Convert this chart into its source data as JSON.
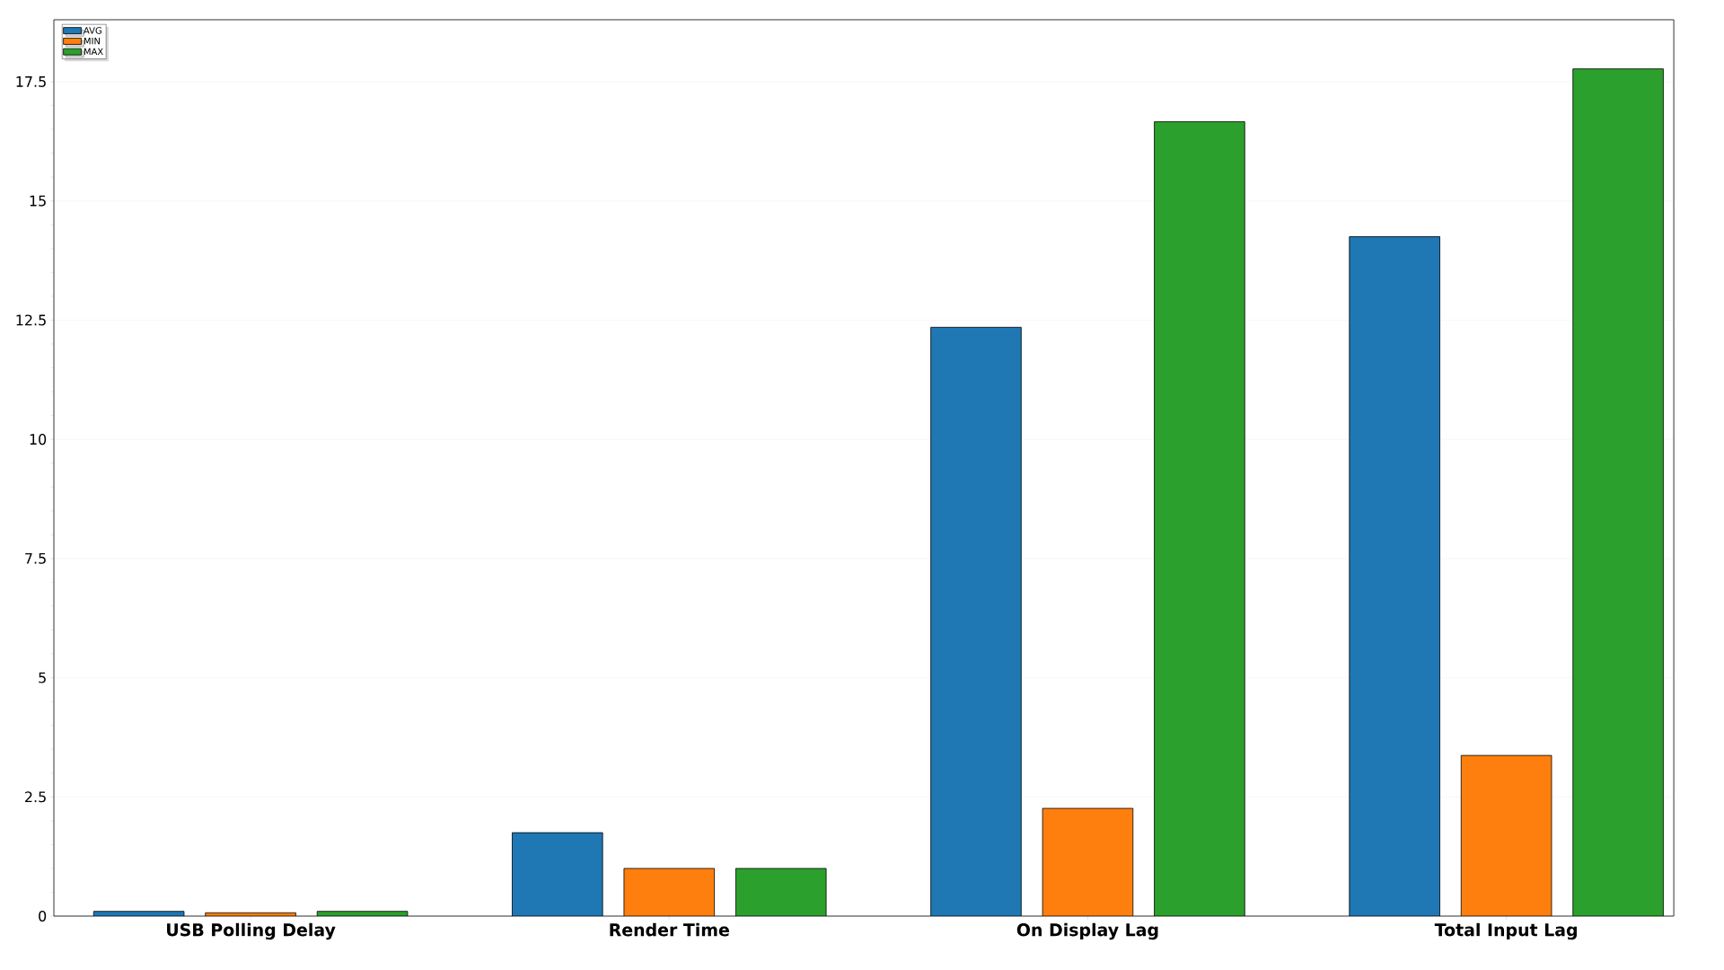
{
  "chart_data": {
    "type": "bar",
    "categories": [
      "USB Polling Delay",
      "Render Time",
      "On Display Lag",
      "Total Input Lag"
    ],
    "series": [
      {
        "name": "AVG",
        "color": "#1f77b4",
        "values": [
          0.1,
          1.75,
          12.35,
          14.25
        ]
      },
      {
        "name": "MIN",
        "color": "#ff7f0e",
        "values": [
          0.07,
          1.0,
          2.26,
          3.37
        ]
      },
      {
        "name": "MAX",
        "color": "#2ca02c",
        "values": [
          0.1,
          1.0,
          16.66,
          17.77
        ]
      }
    ],
    "ylim": [
      0,
      18.8
    ],
    "yticks": [
      0,
      2.5,
      5,
      7.5,
      10,
      12.5,
      15,
      17.5
    ],
    "grid": "y",
    "legend": "top left"
  }
}
